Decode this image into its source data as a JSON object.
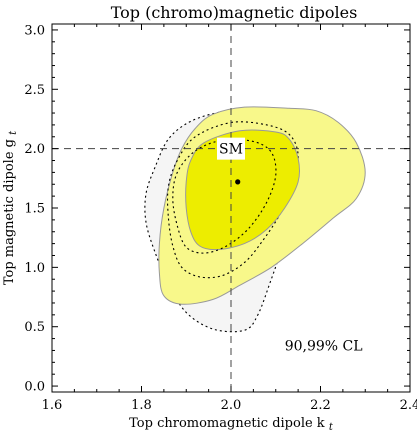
{
  "chart_data": {
    "type": "contour",
    "title": "Top (chromo)magnetic dipoles",
    "xlabel": "Top chromomagnetic dipole k",
    "xlabel_sub": "t",
    "ylabel": "Top magnetic dipole g",
    "ylabel_sub": "t",
    "xlim": [
      1.6,
      2.4
    ],
    "ylim": [
      -0.05,
      3.05
    ],
    "xticks": [
      1.6,
      1.8,
      2.0,
      2.2,
      2.4
    ],
    "xtick_labels": [
      "1.6",
      "1.8",
      "2.0",
      "2.2",
      "2.4"
    ],
    "yticks": [
      0.0,
      0.5,
      1.0,
      1.5,
      2.0,
      2.5,
      3.0
    ],
    "ytick_labels": [
      "0.0",
      "0.5",
      "1.0",
      "1.5",
      "2.0",
      "2.5",
      "3.0"
    ],
    "grid": false,
    "reference_lines": {
      "x": 2.0,
      "y": 2.0,
      "style": "dashed"
    },
    "sm_point": {
      "x": 2.0,
      "y": 2.0,
      "label": "SM"
    },
    "best_fit": {
      "x": 2.015,
      "y": 1.72
    },
    "annotation": "90,99% CL",
    "colors": {
      "inner_fill": "#eded00",
      "outer_fill": "#f8f88a",
      "gray_fill": "#f5f5f5",
      "contour_line": "#999999"
    },
    "regions": [
      {
        "id": "gray-99",
        "style": "fill-dotted",
        "points": [
          [
            2.14,
            2.3
          ],
          [
            2.06,
            2.33
          ],
          [
            1.98,
            2.31
          ],
          [
            1.91,
            2.23
          ],
          [
            1.86,
            2.08
          ],
          [
            1.83,
            1.84
          ],
          [
            1.81,
            1.62
          ],
          [
            1.81,
            1.38
          ],
          [
            1.83,
            1.13
          ],
          [
            1.86,
            0.86
          ],
          [
            1.9,
            0.62
          ],
          [
            1.96,
            0.48
          ],
          [
            2.03,
            0.47
          ],
          [
            2.06,
            0.6
          ],
          [
            2.09,
            0.9
          ],
          [
            2.12,
            1.22
          ],
          [
            2.16,
            1.6
          ],
          [
            2.19,
            1.9
          ],
          [
            2.19,
            2.15
          ]
        ]
      },
      {
        "id": "yellow-99",
        "style": "fill-solid",
        "points": [
          [
            2.03,
            2.35
          ],
          [
            2.13,
            2.34
          ],
          [
            2.19,
            2.32
          ],
          [
            2.24,
            2.22
          ],
          [
            2.28,
            2.05
          ],
          [
            2.3,
            1.8
          ],
          [
            2.28,
            1.58
          ],
          [
            2.23,
            1.42
          ],
          [
            2.16,
            1.2
          ],
          [
            2.09,
            1.0
          ],
          [
            2.02,
            0.85
          ],
          [
            1.96,
            0.73
          ],
          [
            1.89,
            0.69
          ],
          [
            1.85,
            0.76
          ],
          [
            1.84,
            0.95
          ],
          [
            1.84,
            1.2
          ],
          [
            1.85,
            1.5
          ],
          [
            1.87,
            1.8
          ],
          [
            1.89,
            2.0
          ],
          [
            1.92,
            2.17
          ],
          [
            1.96,
            2.29
          ]
        ]
      },
      {
        "id": "gray-90",
        "style": "dotted",
        "points": [
          [
            2.0,
            2.22
          ],
          [
            2.08,
            2.2
          ],
          [
            2.13,
            2.12
          ],
          [
            2.15,
            1.95
          ],
          [
            2.14,
            1.7
          ],
          [
            2.11,
            1.45
          ],
          [
            2.07,
            1.22
          ],
          [
            2.03,
            1.04
          ],
          [
            1.98,
            0.93
          ],
          [
            1.93,
            0.92
          ],
          [
            1.89,
            1.0
          ],
          [
            1.87,
            1.18
          ],
          [
            1.86,
            1.42
          ],
          [
            1.86,
            1.68
          ],
          [
            1.88,
            1.9
          ],
          [
            1.92,
            2.1
          ]
        ]
      },
      {
        "id": "yellow-90",
        "style": "fill-solid",
        "points": [
          [
            2.02,
            2.15
          ],
          [
            2.1,
            2.14
          ],
          [
            2.13,
            2.08
          ],
          [
            2.15,
            1.92
          ],
          [
            2.15,
            1.72
          ],
          [
            2.12,
            1.5
          ],
          [
            2.08,
            1.32
          ],
          [
            2.03,
            1.2
          ],
          [
            1.97,
            1.15
          ],
          [
            1.93,
            1.18
          ],
          [
            1.91,
            1.3
          ],
          [
            1.9,
            1.5
          ],
          [
            1.9,
            1.72
          ],
          [
            1.91,
            1.9
          ],
          [
            1.94,
            2.05
          ]
        ]
      },
      {
        "id": "gray-90-inner",
        "style": "dotted",
        "points": [
          [
            1.98,
            2.07
          ],
          [
            2.05,
            2.06
          ],
          [
            2.09,
            1.97
          ],
          [
            2.1,
            1.78
          ],
          [
            2.08,
            1.55
          ],
          [
            2.04,
            1.33
          ],
          [
            1.99,
            1.18
          ],
          [
            1.94,
            1.12
          ],
          [
            1.9,
            1.17
          ],
          [
            1.88,
            1.35
          ],
          [
            1.87,
            1.58
          ],
          [
            1.88,
            1.8
          ],
          [
            1.92,
            1.98
          ]
        ]
      }
    ]
  }
}
